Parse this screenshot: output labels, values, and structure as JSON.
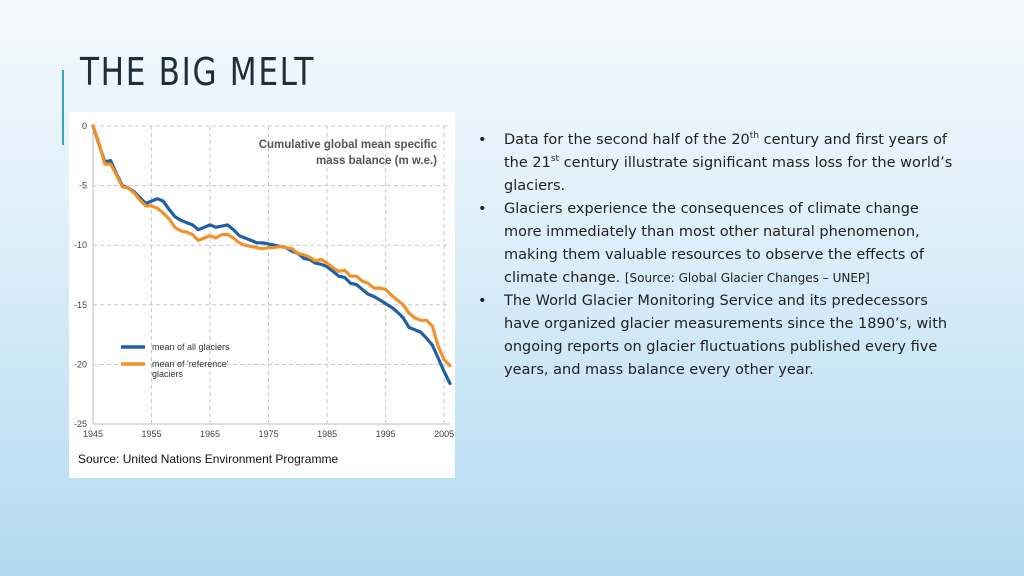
{
  "slide": {
    "title": "THE BIG MELT",
    "source_caption": "Source: United Nations Environment Programme"
  },
  "bullets": [
    {
      "p1": "Data for the second half of the 20",
      "sup1": "th",
      "p2": " century and first years of the 21",
      "sup2": "st",
      "p3": " century illustrate significant mass loss for the world’s glaciers."
    },
    {
      "p1": "Glaciers experience the consequences of climate change more immediately than most other natural phenomenon, making them valuable resources to observe the effects of climate change. ",
      "source": "[Source: Global Glacier Changes – UNEP]"
    },
    {
      "p1": "The World Glacier Monitoring Service and its predecessors have organized glacier measurements since the 1890’s, with ongoing reports on glacier fluctuations published every five years, and mass balance every other year."
    }
  ],
  "chart_data": {
    "type": "line",
    "title_lines": [
      "Cumulative global mean specific",
      "mass balance (m w.e.)"
    ],
    "xlabel": "",
    "ylabel": "",
    "xlim": [
      1945,
      2006
    ],
    "ylim": [
      -25,
      0
    ],
    "x_ticks": [
      1945,
      1955,
      1965,
      1975,
      1985,
      1995,
      2005
    ],
    "y_ticks": [
      0,
      -5,
      -10,
      -15,
      -20,
      -25
    ],
    "grid": true,
    "legend_position": "bottom-left",
    "x": [
      1945,
      1946,
      1947,
      1948,
      1949,
      1950,
      1951,
      1952,
      1953,
      1954,
      1955,
      1956,
      1957,
      1958,
      1959,
      1960,
      1961,
      1962,
      1963,
      1964,
      1965,
      1966,
      1967,
      1968,
      1969,
      1970,
      1971,
      1972,
      1973,
      1974,
      1975,
      1976,
      1977,
      1978,
      1979,
      1980,
      1981,
      1982,
      1983,
      1984,
      1985,
      1986,
      1987,
      1988,
      1989,
      1990,
      1991,
      1992,
      1993,
      1994,
      1995,
      1996,
      1997,
      1998,
      1999,
      2000,
      2001,
      2002,
      2003,
      2004,
      2005,
      2006
    ],
    "series": [
      {
        "name": "mean of all glaciers",
        "color": "#1f5fa8",
        "values": [
          0,
          -1.5,
          -3,
          -2.9,
          -4,
          -5,
          -5.2,
          -5.5,
          -6,
          -6.5,
          -6.3,
          -6.1,
          -6.3,
          -7,
          -7.6,
          -7.9,
          -8.1,
          -8.3,
          -8.7,
          -8.5,
          -8.3,
          -8.5,
          -8.4,
          -8.3,
          -8.7,
          -9.2,
          -9.4,
          -9.6,
          -9.8,
          -9.8,
          -9.9,
          -10,
          -10.1,
          -10.2,
          -10.5,
          -10.7,
          -11.1,
          -11.2,
          -11.5,
          -11.6,
          -11.8,
          -12.2,
          -12.6,
          -12.7,
          -13.2,
          -13.3,
          -13.7,
          -14.1,
          -14.3,
          -14.6,
          -14.9,
          -15.2,
          -15.6,
          -16.1,
          -16.9,
          -17.1,
          -17.3,
          -17.8,
          -18.4,
          -19.5,
          -20.6,
          -21.6
        ]
      },
      {
        "name": "mean of 'reference' glaciers",
        "color": "#f0922a",
        "values": [
          0,
          -1.4,
          -3.2,
          -3.2,
          -4.1,
          -5.1,
          -5.2,
          -5.6,
          -6.2,
          -6.7,
          -6.7,
          -6.9,
          -7.3,
          -7.8,
          -8.5,
          -8.8,
          -8.9,
          -9.1,
          -9.6,
          -9.4,
          -9.2,
          -9.4,
          -9.1,
          -9.1,
          -9.4,
          -9.8,
          -10,
          -10.1,
          -10.2,
          -10.3,
          -10.2,
          -10.2,
          -10.1,
          -10.2,
          -10.3,
          -10.7,
          -10.8,
          -11,
          -11.3,
          -11.2,
          -11.5,
          -11.9,
          -12.2,
          -12.1,
          -12.6,
          -12.6,
          -13,
          -13.2,
          -13.6,
          -13.6,
          -13.7,
          -14.2,
          -14.6,
          -15,
          -15.7,
          -16.1,
          -16.3,
          -16.3,
          -16.8,
          -18.5,
          -19.6,
          -20.1
        ]
      }
    ]
  }
}
